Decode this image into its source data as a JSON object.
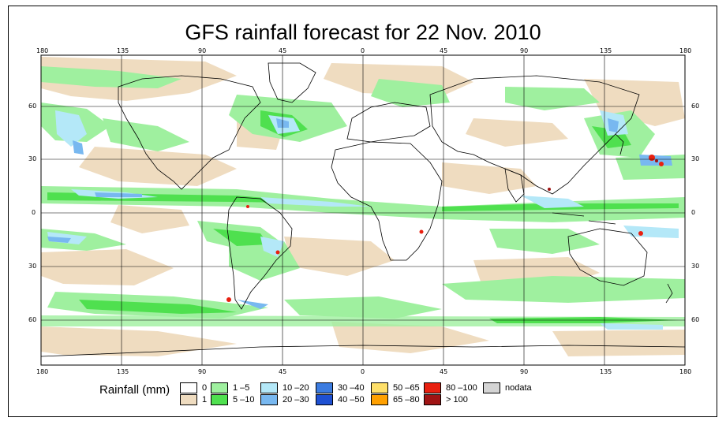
{
  "title": "GFS rainfall forecast for 22 Nov. 2010",
  "top_lon_ticks": [
    "180",
    "135",
    "90",
    "45",
    "0",
    "45",
    "90",
    "135",
    "180"
  ],
  "bottom_lon_ticks": [
    "180",
    "135",
    "90",
    "45",
    "0",
    "45",
    "90",
    "135",
    "180"
  ],
  "left_lat_ticks": [
    "60",
    "30",
    "0",
    "30",
    "60"
  ],
  "right_lat_ticks": [
    "60",
    "30",
    "0",
    "30",
    "60"
  ],
  "legend": {
    "title": "Rainfall (mm)",
    "items": [
      {
        "label": "0",
        "color": "#ffffff"
      },
      {
        "label": "1",
        "color": "#efdcc0"
      },
      {
        "label": "1 –5",
        "color": "#9ff09f"
      },
      {
        "label": "5 –10",
        "color": "#4fe04f"
      },
      {
        "label": "10 –20",
        "color": "#b4e8f8"
      },
      {
        "label": "20 –30",
        "color": "#78b8f0"
      },
      {
        "label": "30 –40",
        "color": "#3c7ce0"
      },
      {
        "label": "40 –50",
        "color": "#1e50d2"
      },
      {
        "label": "50 –65",
        "color": "#ffe06a"
      },
      {
        "label": "65 –80",
        "color": "#ffa000"
      },
      {
        "label": "80 –100",
        "color": "#e82010"
      },
      {
        "label": "> 100",
        "color": "#a01414"
      },
      {
        "label": "nodata",
        "color": "#d4d4d4"
      }
    ]
  }
}
